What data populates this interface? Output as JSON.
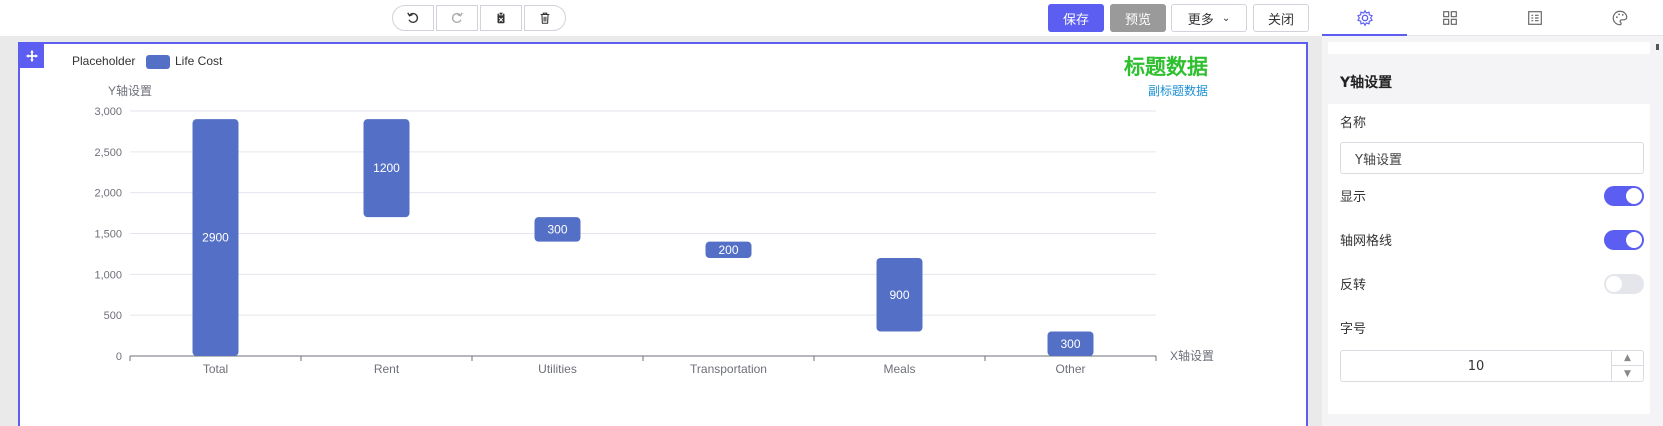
{
  "toolbar": {
    "undo_icon": "undo-icon",
    "redo_icon": "redo-icon",
    "paste_icon": "clipboard-icon",
    "delete_icon": "trash-icon",
    "save_label": "保存",
    "preview_label": "预览",
    "more_label": "更多",
    "close_label": "关闭"
  },
  "panel": {
    "tabs": [
      "settings-icon",
      "grid-icon",
      "table-icon",
      "palette-icon"
    ],
    "section_title": "Y轴设置",
    "name_label": "名称",
    "name_value": "Y轴设置",
    "show_label": "显示",
    "show_on": true,
    "gridline_label": "轴网格线",
    "gridline_on": true,
    "reverse_label": "反转",
    "reverse_on": false,
    "fontsize_label": "字号",
    "fontsize_value": "10"
  },
  "colors": {
    "accent": "#5b5ef0",
    "bar": "#5470c6",
    "title": "#2fc02f",
    "subtitle": "#1a8fd6"
  },
  "chart_data": {
    "type": "bar",
    "title": "标题数据",
    "subtitle": "副标题数据",
    "xlabel": "X轴设置",
    "ylabel": "Y轴设置",
    "legend": [
      "Placeholder",
      "Life Cost"
    ],
    "legend_position": "top-left",
    "categories": [
      "Total",
      "Rent",
      "Utilities",
      "Transportation",
      "Meals",
      "Other"
    ],
    "series": [
      {
        "name": "Placeholder",
        "values": [
          0,
          1700,
          1400,
          1200,
          300,
          0
        ]
      },
      {
        "name": "Life Cost",
        "values": [
          2900,
          1200,
          300,
          200,
          900,
          300
        ]
      }
    ],
    "ylim": [
      0,
      3000
    ],
    "yticks": [
      0,
      500,
      1000,
      1500,
      2000,
      2500,
      3000
    ],
    "ytick_labels": [
      "0",
      "500",
      "1,000",
      "1,500",
      "2,000",
      "2,500",
      "3,000"
    ],
    "grid": true
  }
}
